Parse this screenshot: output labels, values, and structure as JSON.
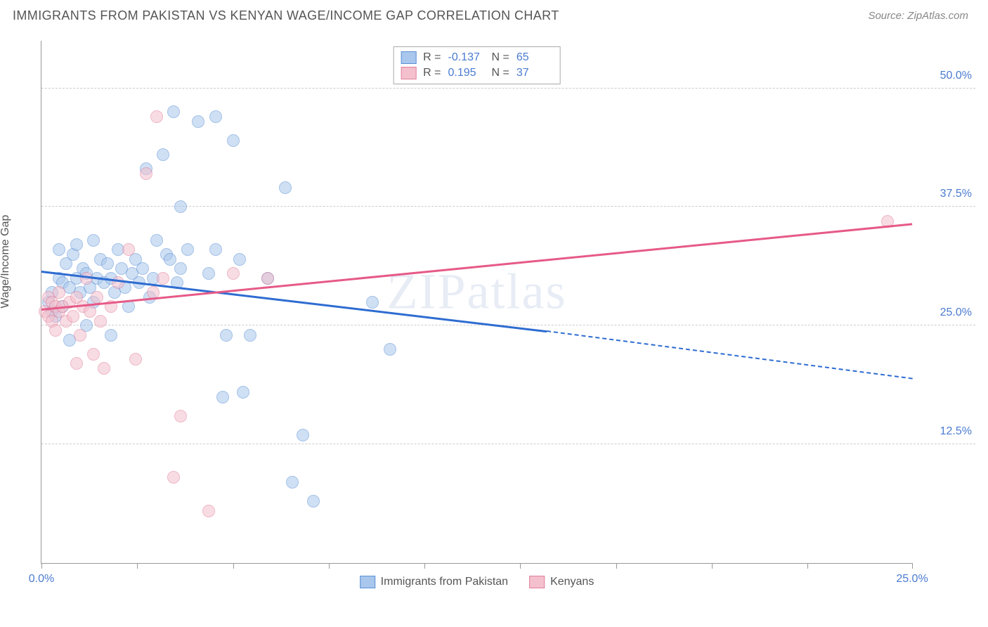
{
  "title": "IMMIGRANTS FROM PAKISTAN VS KENYAN WAGE/INCOME GAP CORRELATION CHART",
  "source": "Source: ZipAtlas.com",
  "ylabel": "Wage/Income Gap",
  "watermark": "ZIPatlas",
  "chart": {
    "type": "scatter",
    "xlim": [
      0,
      25
    ],
    "ylim": [
      0,
      55
    ],
    "xticks": [
      0,
      2.75,
      5.5,
      8.25,
      11,
      13.75,
      16.5,
      19.25,
      22,
      25
    ],
    "xtick_labels": {
      "0": "0.0%",
      "25": "25.0%"
    },
    "yticks": [
      12.5,
      25,
      37.5,
      50
    ],
    "ytick_labels": [
      "12.5%",
      "25.0%",
      "37.5%",
      "50.0%"
    ],
    "grid_color": "#cccccc",
    "axis_color": "#999999",
    "background_color": "#ffffff",
    "point_radius": 9,
    "point_opacity": 0.55,
    "series": [
      {
        "name": "Immigrants from Pakistan",
        "color_fill": "#a9c7ec",
        "color_stroke": "#5b8fd6",
        "trend_color": "#2e6cd1",
        "R": "-0.137",
        "N": "65",
        "trend": {
          "x1": 0,
          "y1": 30.8,
          "x2": 14.5,
          "y2": 24.5,
          "x2_dash": 25,
          "y2_dash": 19.5
        },
        "points": [
          [
            0.2,
            27.5
          ],
          [
            0.3,
            26.5
          ],
          [
            0.3,
            28.5
          ],
          [
            0.4,
            26.0
          ],
          [
            0.5,
            30.0
          ],
          [
            0.5,
            33.0
          ],
          [
            0.6,
            29.5
          ],
          [
            0.6,
            27.0
          ],
          [
            0.7,
            31.5
          ],
          [
            0.8,
            29.0
          ],
          [
            0.8,
            23.5
          ],
          [
            0.9,
            32.5
          ],
          [
            1.0,
            30.0
          ],
          [
            1.0,
            33.5
          ],
          [
            1.1,
            28.5
          ],
          [
            1.2,
            31.0
          ],
          [
            1.3,
            30.5
          ],
          [
            1.3,
            25.0
          ],
          [
            1.4,
            29.0
          ],
          [
            1.5,
            34.0
          ],
          [
            1.5,
            27.5
          ],
          [
            1.6,
            30.0
          ],
          [
            1.7,
            32.0
          ],
          [
            1.8,
            29.5
          ],
          [
            1.9,
            31.5
          ],
          [
            2.0,
            30.0
          ],
          [
            2.0,
            24.0
          ],
          [
            2.1,
            28.5
          ],
          [
            2.2,
            33.0
          ],
          [
            2.3,
            31.0
          ],
          [
            2.4,
            29.0
          ],
          [
            2.5,
            27.0
          ],
          [
            2.6,
            30.5
          ],
          [
            2.7,
            32.0
          ],
          [
            2.8,
            29.5
          ],
          [
            2.9,
            31.0
          ],
          [
            3.0,
            41.5
          ],
          [
            3.1,
            28.0
          ],
          [
            3.2,
            30.0
          ],
          [
            3.3,
            34.0
          ],
          [
            3.5,
            43.0
          ],
          [
            3.6,
            32.5
          ],
          [
            3.7,
            32.0
          ],
          [
            3.8,
            47.5
          ],
          [
            3.9,
            29.5
          ],
          [
            4.0,
            37.5
          ],
          [
            4.0,
            31.0
          ],
          [
            4.2,
            33.0
          ],
          [
            4.5,
            46.5
          ],
          [
            4.8,
            30.5
          ],
          [
            5.0,
            47.0
          ],
          [
            5.0,
            33.0
          ],
          [
            5.2,
            17.5
          ],
          [
            5.3,
            24.0
          ],
          [
            5.5,
            44.5
          ],
          [
            5.7,
            32.0
          ],
          [
            5.8,
            18.0
          ],
          [
            6.0,
            24.0
          ],
          [
            6.5,
            30.0
          ],
          [
            7.0,
            39.5
          ],
          [
            7.2,
            8.5
          ],
          [
            7.5,
            13.5
          ],
          [
            7.8,
            6.5
          ],
          [
            9.5,
            27.5
          ],
          [
            10.0,
            22.5
          ]
        ]
      },
      {
        "name": "Kenyans",
        "color_fill": "#f4c0cd",
        "color_stroke": "#e07f9b",
        "trend_color": "#e65a87",
        "R": "0.195",
        "N": "37",
        "trend": {
          "x1": 0,
          "y1": 26.8,
          "x2": 25,
          "y2": 35.8
        },
        "points": [
          [
            0.1,
            26.5
          ],
          [
            0.2,
            28.0
          ],
          [
            0.2,
            26.0
          ],
          [
            0.3,
            27.5
          ],
          [
            0.3,
            25.5
          ],
          [
            0.4,
            27.0
          ],
          [
            0.4,
            24.5
          ],
          [
            0.5,
            26.5
          ],
          [
            0.5,
            28.5
          ],
          [
            0.6,
            27.0
          ],
          [
            0.7,
            25.5
          ],
          [
            0.8,
            27.5
          ],
          [
            0.9,
            26.0
          ],
          [
            1.0,
            28.0
          ],
          [
            1.0,
            21.0
          ],
          [
            1.1,
            24.0
          ],
          [
            1.2,
            27.0
          ],
          [
            1.3,
            30.0
          ],
          [
            1.4,
            26.5
          ],
          [
            1.5,
            22.0
          ],
          [
            1.6,
            28.0
          ],
          [
            1.7,
            25.5
          ],
          [
            1.8,
            20.5
          ],
          [
            2.0,
            27.0
          ],
          [
            2.2,
            29.5
          ],
          [
            2.5,
            33.0
          ],
          [
            2.7,
            21.5
          ],
          [
            3.0,
            41.0
          ],
          [
            3.2,
            28.5
          ],
          [
            3.3,
            47.0
          ],
          [
            3.5,
            30.0
          ],
          [
            3.8,
            9.0
          ],
          [
            4.0,
            15.5
          ],
          [
            4.8,
            5.5
          ],
          [
            5.5,
            30.5
          ],
          [
            6.5,
            30.0
          ],
          [
            24.3,
            36.0
          ]
        ]
      }
    ]
  },
  "legend": {
    "items": [
      {
        "label": "Immigrants from Pakistan",
        "fill": "#a9c7ec",
        "stroke": "#5b8fd6"
      },
      {
        "label": "Kenyans",
        "fill": "#f4c0cd",
        "stroke": "#e07f9b"
      }
    ]
  }
}
